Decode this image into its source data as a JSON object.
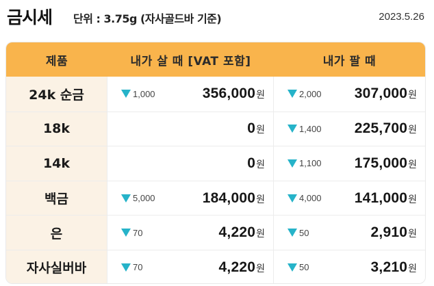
{
  "header": {
    "title": "금시세",
    "unit": "단위 : 3.75g (자사골드바 기준)",
    "date": "2023.5.26"
  },
  "table": {
    "columns": [
      "제품",
      "내가 살 때 [VAT 포함]",
      "내가 팔 때"
    ],
    "currency": "원",
    "change_color": "#26b3c9",
    "rows": [
      {
        "product": "24k 순금",
        "buy_change": "1,000",
        "buy_price": "356,000",
        "sell_change": "2,000",
        "sell_price": "307,000"
      },
      {
        "product": "18k",
        "buy_change": "",
        "buy_price": "0",
        "sell_change": "1,400",
        "sell_price": "225,700"
      },
      {
        "product": "14k",
        "buy_change": "",
        "buy_price": "0",
        "sell_change": "1,100",
        "sell_price": "175,000"
      },
      {
        "product": "백금",
        "buy_change": "5,000",
        "buy_price": "184,000",
        "sell_change": "4,000",
        "sell_price": "141,000"
      },
      {
        "product": "은",
        "buy_change": "70",
        "buy_price": "4,220",
        "sell_change": "50",
        "sell_price": "2,910"
      },
      {
        "product": "자사실버바",
        "buy_change": "70",
        "buy_price": "4,220",
        "sell_change": "50",
        "sell_price": "3,210"
      }
    ]
  }
}
